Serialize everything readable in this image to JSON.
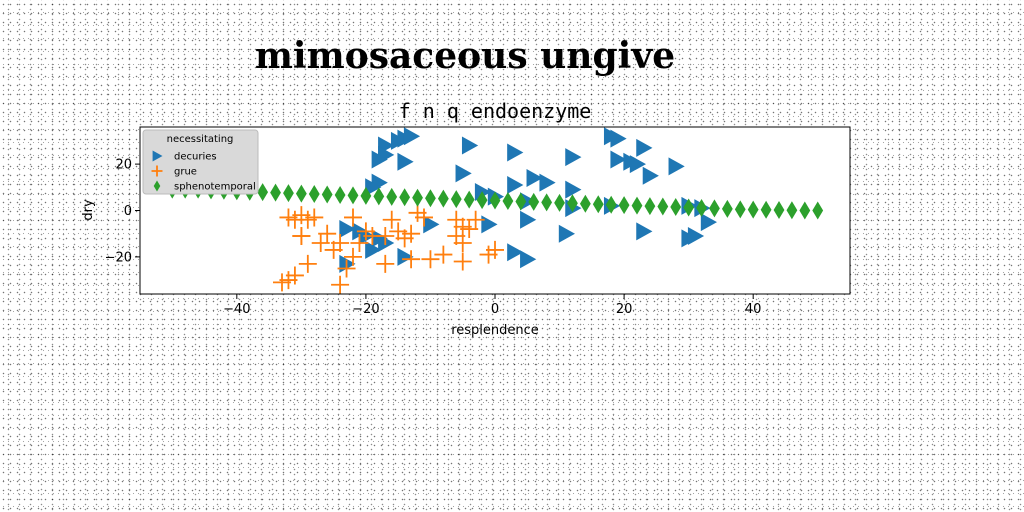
{
  "chart_data": {
    "type": "scatter",
    "title": "mimosaceous ungive",
    "subtitle": "f n q endoenzyme",
    "xlabel": "resplendence",
    "ylabel": "dry",
    "xlim": [
      -55,
      55
    ],
    "ylim": [
      -36,
      36
    ],
    "xticks": [
      -40,
      -20,
      0,
      20,
      40
    ],
    "yticks": [
      -20,
      0,
      20
    ],
    "grid": false,
    "legend": {
      "title": "necessitating",
      "placement": "top-left"
    },
    "series": [
      {
        "name": "decuries",
        "marker": "triangle-right",
        "color": "#1f77b4",
        "points": [
          [
            -17,
            28
          ],
          [
            -15,
            30
          ],
          [
            -14,
            31
          ],
          [
            -13,
            32
          ],
          [
            -17,
            24
          ],
          [
            -18,
            22
          ],
          [
            -14,
            21
          ],
          [
            -4,
            28
          ],
          [
            3,
            25
          ],
          [
            12,
            23
          ],
          [
            18,
            32
          ],
          [
            19,
            31
          ],
          [
            23,
            27
          ],
          [
            19,
            22
          ],
          [
            21,
            21
          ],
          [
            22,
            20
          ],
          [
            28,
            19
          ],
          [
            24,
            15
          ],
          [
            -5,
            16
          ],
          [
            -18,
            12
          ],
          [
            -19,
            10
          ],
          [
            -2,
            8
          ],
          [
            3,
            11
          ],
          [
            6,
            14
          ],
          [
            8,
            12
          ],
          [
            12,
            9
          ],
          [
            18,
            2
          ],
          [
            12,
            1
          ],
          [
            5,
            4
          ],
          [
            0,
            6
          ],
          [
            30,
            2
          ],
          [
            32,
            1
          ],
          [
            33,
            -5
          ],
          [
            -10,
            -6
          ],
          [
            -1,
            -6
          ],
          [
            -23,
            -8
          ],
          [
            -21,
            -9
          ],
          [
            -20,
            -11
          ],
          [
            -18,
            -12
          ],
          [
            -17,
            -14
          ],
          [
            -19,
            -17
          ],
          [
            -23,
            -23
          ],
          [
            -14,
            -20
          ],
          [
            3,
            -18
          ],
          [
            5,
            -21
          ],
          [
            11,
            -10
          ],
          [
            5,
            -4
          ],
          [
            23,
            -9
          ],
          [
            30,
            -12
          ],
          [
            31,
            -11
          ]
        ]
      },
      {
        "name": "grue",
        "marker": "plus",
        "color": "#ff7f0e",
        "points": [
          [
            -32,
            -3
          ],
          [
            -31,
            -4
          ],
          [
            -30,
            -2
          ],
          [
            -29,
            -4
          ],
          [
            -28,
            -3
          ],
          [
            -30,
            -11
          ],
          [
            -27,
            -14
          ],
          [
            -26,
            -10
          ],
          [
            -25,
            -17
          ],
          [
            -24,
            -14
          ],
          [
            -22,
            -3
          ],
          [
            -20,
            -9
          ],
          [
            -21,
            -14
          ],
          [
            -19,
            -11
          ],
          [
            -17,
            -11
          ],
          [
            -16,
            -4
          ],
          [
            -15,
            -9
          ],
          [
            -14,
            -12
          ],
          [
            -13,
            -10
          ],
          [
            -12,
            -1
          ],
          [
            -11,
            -3
          ],
          [
            -10,
            -21
          ],
          [
            -13,
            -21
          ],
          [
            -17,
            -23
          ],
          [
            -22,
            -20
          ],
          [
            -23,
            -25
          ],
          [
            -29,
            -23
          ],
          [
            -31,
            -28
          ],
          [
            -33,
            -31
          ],
          [
            -32,
            -30
          ],
          [
            -24,
            -32
          ],
          [
            -8,
            -19
          ],
          [
            -6,
            -4
          ],
          [
            -5,
            -7
          ],
          [
            -6,
            -11
          ],
          [
            -4,
            -8
          ],
          [
            -5,
            -14
          ],
          [
            -3,
            -4
          ],
          [
            -5,
            -22
          ],
          [
            -1,
            -19
          ],
          [
            0,
            -17
          ],
          [
            -30,
            -11
          ]
        ]
      },
      {
        "name": "sphenotemporal",
        "marker": "diamond",
        "color": "#2ca02c",
        "points": [
          [
            -50,
            9
          ],
          [
            -48,
            9
          ],
          [
            -46,
            9
          ],
          [
            -44,
            8.7
          ],
          [
            -42,
            8.5
          ],
          [
            -40,
            8.3
          ],
          [
            -38,
            8.1
          ],
          [
            -36,
            7.9
          ],
          [
            -34,
            7.7
          ],
          [
            -32,
            7.5
          ],
          [
            -30,
            7.3
          ],
          [
            -28,
            7.1
          ],
          [
            -26,
            6.9
          ],
          [
            -24,
            6.7
          ],
          [
            -22,
            6.5
          ],
          [
            -20,
            6.3
          ],
          [
            -18,
            6.1
          ],
          [
            -16,
            5.9
          ],
          [
            -14,
            5.7
          ],
          [
            -12,
            5.5
          ],
          [
            -10,
            5.3
          ],
          [
            -8,
            5.1
          ],
          [
            -6,
            4.9
          ],
          [
            -4,
            4.7
          ],
          [
            -2,
            4.5
          ],
          [
            0,
            4.3
          ],
          [
            2,
            4.1
          ],
          [
            4,
            3.9
          ],
          [
            6,
            3.7
          ],
          [
            8,
            3.5
          ],
          [
            10,
            3.3
          ],
          [
            12,
            3.1
          ],
          [
            14,
            2.9
          ],
          [
            16,
            2.7
          ],
          [
            18,
            2.5
          ],
          [
            20,
            2.3
          ],
          [
            22,
            2.1
          ],
          [
            24,
            1.9
          ],
          [
            26,
            1.7
          ],
          [
            28,
            1.5
          ],
          [
            30,
            1.3
          ],
          [
            32,
            1.1
          ],
          [
            34,
            0.9
          ],
          [
            36,
            0.7
          ],
          [
            38,
            0.5
          ],
          [
            40,
            0.4
          ],
          [
            42,
            0.3
          ],
          [
            44,
            0.2
          ],
          [
            46,
            0.1
          ],
          [
            48,
            0
          ],
          [
            50,
            0
          ]
        ]
      }
    ]
  }
}
